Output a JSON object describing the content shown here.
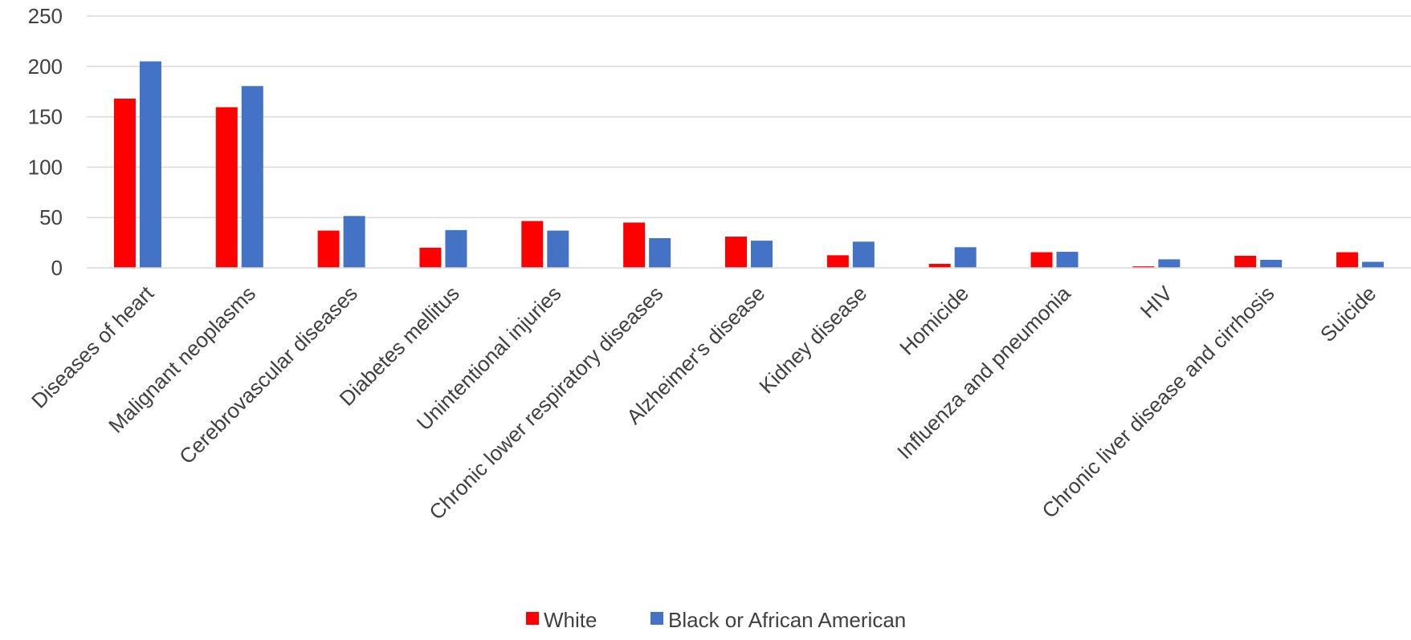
{
  "chart_data": {
    "type": "bar",
    "title": "",
    "xlabel": "",
    "ylabel": "",
    "ylim": [
      0,
      250
    ],
    "yticks": [
      0,
      50,
      100,
      150,
      200,
      250
    ],
    "grid": true,
    "legend_position": "bottom",
    "categories": [
      "Diseases of heart",
      "Malignant neoplasms",
      "Cerebrovascular diseases",
      "Diabetes mellitus",
      "Unintentional injuries",
      "Chronic lower respiratory diseases",
      "Alzheimer's disease",
      "Kidney disease",
      "Homicide",
      "Influenza and pneumonia",
      "HIV",
      "Chronic liver disease and cirrhosis",
      "Suicide"
    ],
    "series": [
      {
        "name": "White",
        "color": "#ff0000",
        "values": [
          168,
          159.5,
          37,
          20,
          46.5,
          45,
          31,
          12.5,
          4,
          15.5,
          1.5,
          12,
          15.5
        ]
      },
      {
        "name": "Black or African American",
        "color": "#4472c4",
        "values": [
          205,
          180.5,
          51.5,
          37.5,
          37,
          29.5,
          27,
          26,
          20.5,
          16,
          8.5,
          8,
          6
        ]
      }
    ]
  }
}
